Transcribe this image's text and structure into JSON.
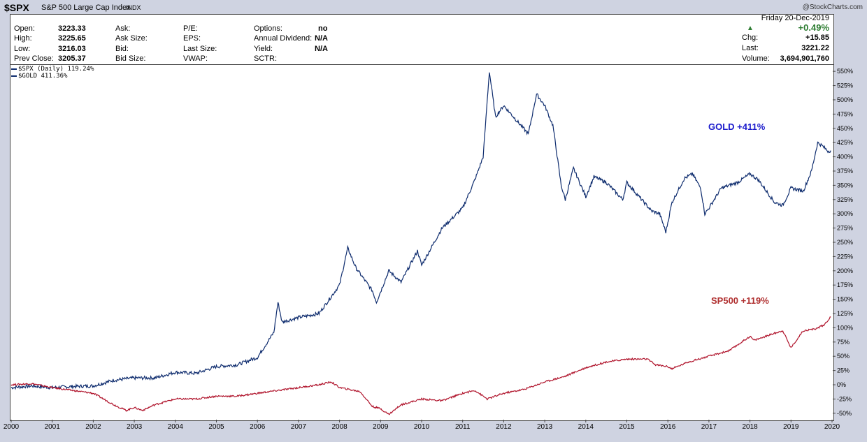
{
  "header": {
    "symbol": "$SPX",
    "name": "S&P 500 Large Cap Index",
    "exchange": "INDX",
    "credit": "@StockCharts.com"
  },
  "quote": {
    "date": "Friday  20-Dec-2019",
    "change_pct": "+0.49%",
    "rows": [
      {
        "l1": "Open:",
        "v1": "3223.33",
        "l2": "Ask:",
        "l3": "P/E:",
        "l4": "Options:",
        "v4": "no",
        "l5": "Chg:",
        "v5": "+15.85"
      },
      {
        "l1": "High:",
        "v1": "3225.65",
        "l2": "Ask Size:",
        "l3": "EPS:",
        "l4": "Annual Dividend:",
        "v4": "N/A",
        "l5": "Last:",
        "v5": "3221.22"
      },
      {
        "l1": "Low:",
        "v1": "3216.03",
        "l2": "Bid:",
        "l3": "Last Size:",
        "l4": "Yield:",
        "v4": "N/A",
        "l5": "Volume:",
        "v5": "3,694,901,760"
      },
      {
        "l1": "Prev Close:",
        "v1": "3205.37",
        "l2": "Bid Size:",
        "l3": "VWAP:",
        "l4": "SCTR:",
        "v4": "",
        "l5": "",
        "v5": ""
      }
    ],
    "up_color": "#2e7d32"
  },
  "legend": {
    "spx": "$SPX (Daily) 119.24%",
    "gold": "$GOLD 411.36%"
  },
  "annotations": {
    "gold": "GOLD +411%",
    "spx": "SP500 +119%",
    "gold_color": "#1a1acc",
    "spx_color": "#b03030"
  },
  "chart_data": {
    "type": "line",
    "ylim": [
      -60,
      560
    ],
    "xlim": [
      2000,
      2020
    ],
    "yticks": [
      -50,
      -25,
      0,
      25,
      50,
      75,
      100,
      125,
      150,
      175,
      200,
      225,
      250,
      275,
      300,
      325,
      350,
      375,
      400,
      425,
      450,
      475,
      500,
      525,
      550
    ],
    "xticks": [
      2000,
      2001,
      2002,
      2003,
      2004,
      2005,
      2006,
      2007,
      2008,
      2009,
      2010,
      2011,
      2012,
      2013,
      2014,
      2015,
      2016,
      2017,
      2018,
      2019,
      2020
    ],
    "series": [
      {
        "name": "$GOLD",
        "color": "#0e2c6e",
        "points": [
          [
            2000.0,
            -5
          ],
          [
            2000.5,
            -2
          ],
          [
            2001.0,
            -5
          ],
          [
            2001.5,
            -3
          ],
          [
            2002.0,
            -2
          ],
          [
            2002.5,
            8
          ],
          [
            2003.0,
            12
          ],
          [
            2003.5,
            12
          ],
          [
            2004.0,
            22
          ],
          [
            2004.5,
            20
          ],
          [
            2005.0,
            32
          ],
          [
            2005.5,
            35
          ],
          [
            2006.0,
            48
          ],
          [
            2006.4,
            92
          ],
          [
            2006.5,
            145
          ],
          [
            2006.6,
            110
          ],
          [
            2007.0,
            118
          ],
          [
            2007.5,
            125
          ],
          [
            2008.0,
            175
          ],
          [
            2008.2,
            240
          ],
          [
            2008.4,
            205
          ],
          [
            2008.8,
            165
          ],
          [
            2008.9,
            145
          ],
          [
            2009.2,
            200
          ],
          [
            2009.5,
            180
          ],
          [
            2009.9,
            235
          ],
          [
            2010.0,
            210
          ],
          [
            2010.5,
            275
          ],
          [
            2011.0,
            310
          ],
          [
            2011.3,
            360
          ],
          [
            2011.5,
            400
          ],
          [
            2011.65,
            550
          ],
          [
            2011.8,
            470
          ],
          [
            2012.0,
            490
          ],
          [
            2012.3,
            465
          ],
          [
            2012.6,
            440
          ],
          [
            2012.8,
            510
          ],
          [
            2013.0,
            490
          ],
          [
            2013.2,
            455
          ],
          [
            2013.4,
            350
          ],
          [
            2013.5,
            325
          ],
          [
            2013.7,
            380
          ],
          [
            2014.0,
            330
          ],
          [
            2014.2,
            365
          ],
          [
            2014.5,
            355
          ],
          [
            2014.9,
            325
          ],
          [
            2015.0,
            355
          ],
          [
            2015.3,
            330
          ],
          [
            2015.6,
            305
          ],
          [
            2015.8,
            300
          ],
          [
            2015.95,
            268
          ],
          [
            2016.1,
            320
          ],
          [
            2016.4,
            362
          ],
          [
            2016.6,
            370
          ],
          [
            2016.8,
            345
          ],
          [
            2016.9,
            300
          ],
          [
            2017.0,
            310
          ],
          [
            2017.3,
            345
          ],
          [
            2017.7,
            355
          ],
          [
            2018.0,
            370
          ],
          [
            2018.2,
            360
          ],
          [
            2018.6,
            320
          ],
          [
            2018.8,
            315
          ],
          [
            2019.0,
            345
          ],
          [
            2019.3,
            340
          ],
          [
            2019.5,
            375
          ],
          [
            2019.65,
            425
          ],
          [
            2019.75,
            420
          ],
          [
            2019.9,
            410
          ],
          [
            2019.97,
            411
          ]
        ]
      },
      {
        "name": "$SPX",
        "color": "#b0142c",
        "points": [
          [
            2000.0,
            0
          ],
          [
            2000.5,
            2
          ],
          [
            2001.0,
            -5
          ],
          [
            2001.5,
            -10
          ],
          [
            2002.0,
            -15
          ],
          [
            2002.5,
            -35
          ],
          [
            2002.8,
            -45
          ],
          [
            2003.0,
            -40
          ],
          [
            2003.2,
            -45
          ],
          [
            2003.5,
            -35
          ],
          [
            2004.0,
            -25
          ],
          [
            2004.5,
            -25
          ],
          [
            2005.0,
            -20
          ],
          [
            2005.5,
            -20
          ],
          [
            2006.0,
            -15
          ],
          [
            2006.5,
            -10
          ],
          [
            2007.0,
            -5
          ],
          [
            2007.5,
            0
          ],
          [
            2007.8,
            5
          ],
          [
            2008.0,
            -5
          ],
          [
            2008.5,
            -12
          ],
          [
            2008.8,
            -38
          ],
          [
            2009.0,
            -42
          ],
          [
            2009.2,
            -52
          ],
          [
            2009.5,
            -35
          ],
          [
            2010.0,
            -25
          ],
          [
            2010.5,
            -28
          ],
          [
            2011.0,
            -15
          ],
          [
            2011.3,
            -10
          ],
          [
            2011.6,
            -25
          ],
          [
            2012.0,
            -15
          ],
          [
            2012.5,
            -8
          ],
          [
            2013.0,
            5
          ],
          [
            2013.5,
            15
          ],
          [
            2014.0,
            30
          ],
          [
            2014.5,
            40
          ],
          [
            2015.0,
            45
          ],
          [
            2015.5,
            45
          ],
          [
            2015.7,
            35
          ],
          [
            2016.0,
            32
          ],
          [
            2016.1,
            28
          ],
          [
            2016.5,
            40
          ],
          [
            2017.0,
            50
          ],
          [
            2017.5,
            60
          ],
          [
            2018.0,
            85
          ],
          [
            2018.1,
            78
          ],
          [
            2018.5,
            88
          ],
          [
            2018.8,
            95
          ],
          [
            2018.95,
            72
          ],
          [
            2019.0,
            65
          ],
          [
            2019.3,
            95
          ],
          [
            2019.6,
            98
          ],
          [
            2019.8,
            105
          ],
          [
            2019.97,
            119
          ]
        ]
      }
    ]
  }
}
